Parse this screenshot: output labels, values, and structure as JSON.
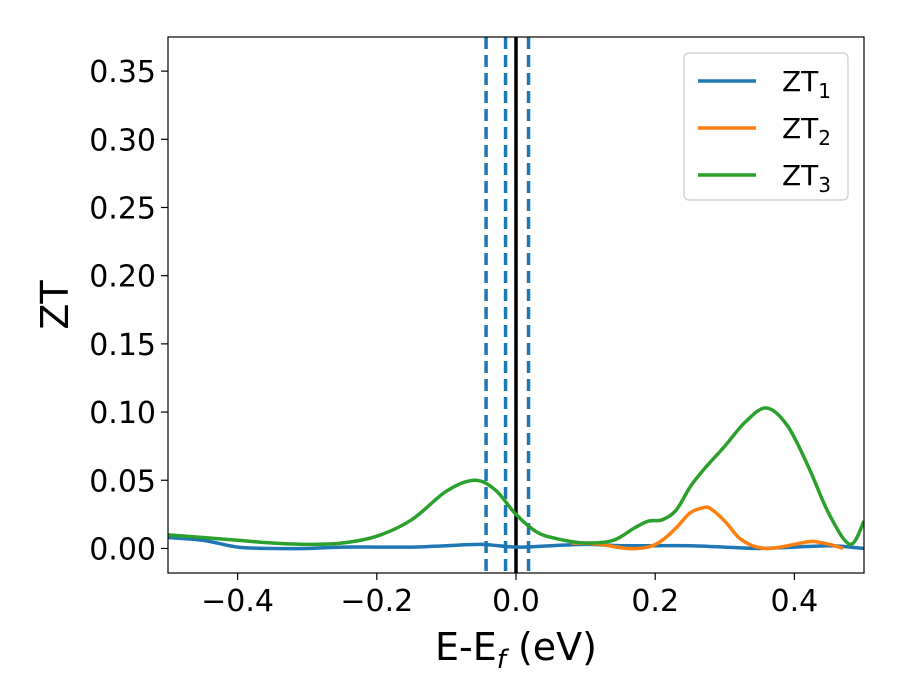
{
  "chart_data": {
    "type": "line",
    "xlabel": {
      "main": "E-E",
      "sub": "f",
      "suffix": " (eV)"
    },
    "ylabel": "ZT",
    "xlim": [
      -0.5,
      0.5
    ],
    "ylim": [
      -0.018,
      0.375
    ],
    "x_ticks": [
      -0.4,
      -0.2,
      0.0,
      0.2,
      0.4
    ],
    "x_tick_labels": [
      "−0.4",
      "−0.2",
      "0.0",
      "0.2",
      "0.4"
    ],
    "y_ticks": [
      0.0,
      0.05,
      0.1,
      0.15,
      0.2,
      0.25,
      0.3,
      0.35
    ],
    "y_tick_labels": [
      "0.00",
      "0.05",
      "0.10",
      "0.15",
      "0.20",
      "0.25",
      "0.30",
      "0.35"
    ],
    "grid": false,
    "legend_position": "top-right",
    "series": [
      {
        "name": "ZT",
        "sub": "1",
        "color": "#1f77b4",
        "x": [
          -0.5,
          -0.45,
          -0.4,
          -0.35,
          -0.3,
          -0.25,
          -0.2,
          -0.15,
          -0.1,
          -0.05,
          0.0,
          0.05,
          0.1,
          0.15,
          0.2,
          0.25,
          0.3,
          0.35,
          0.4,
          0.45,
          0.48,
          0.5
        ],
        "y": [
          0.008,
          0.006,
          0.001,
          0.0,
          0.0,
          0.001,
          0.001,
          0.001,
          0.002,
          0.003,
          0.001,
          0.002,
          0.003,
          0.002,
          0.002,
          0.002,
          0.001,
          0.0,
          0.001,
          0.002,
          0.001,
          0.0
        ]
      },
      {
        "name": "ZT",
        "sub": "2",
        "color": "#ff7f0e",
        "x": [
          0.08,
          0.12,
          0.16,
          0.19,
          0.21,
          0.23,
          0.25,
          0.27,
          0.28,
          0.3,
          0.32,
          0.34,
          0.36,
          0.38,
          0.4,
          0.42,
          0.43,
          0.45,
          0.47
        ],
        "y": [
          0.004,
          0.003,
          0.0,
          0.001,
          0.006,
          0.015,
          0.026,
          0.03,
          0.029,
          0.02,
          0.008,
          0.002,
          0.0,
          0.001,
          0.003,
          0.005,
          0.005,
          0.003,
          0.0
        ]
      },
      {
        "name": "ZT",
        "sub": "3",
        "color": "#2ca02c",
        "x": [
          -0.5,
          -0.45,
          -0.4,
          -0.35,
          -0.3,
          -0.25,
          -0.2,
          -0.15,
          -0.1,
          -0.06,
          -0.03,
          0.0,
          0.03,
          0.06,
          0.1,
          0.14,
          0.17,
          0.19,
          0.21,
          0.23,
          0.25,
          0.27,
          0.3,
          0.33,
          0.36,
          0.39,
          0.42,
          0.45,
          0.48,
          0.5
        ],
        "y": [
          0.01,
          0.008,
          0.006,
          0.004,
          0.003,
          0.004,
          0.009,
          0.021,
          0.042,
          0.05,
          0.043,
          0.025,
          0.012,
          0.007,
          0.004,
          0.006,
          0.015,
          0.02,
          0.021,
          0.028,
          0.045,
          0.058,
          0.075,
          0.093,
          0.103,
          0.09,
          0.06,
          0.025,
          0.003,
          0.02
        ]
      }
    ],
    "vlines": [
      {
        "x": -0.043,
        "style": "dashed",
        "color": "#1f77b4"
      },
      {
        "x": -0.015,
        "style": "dashed",
        "color": "#1f77b4"
      },
      {
        "x": 0.018,
        "style": "dashed",
        "color": "#1f77b4"
      },
      {
        "x": 0.0,
        "style": "solid",
        "color": "#000000"
      }
    ]
  }
}
